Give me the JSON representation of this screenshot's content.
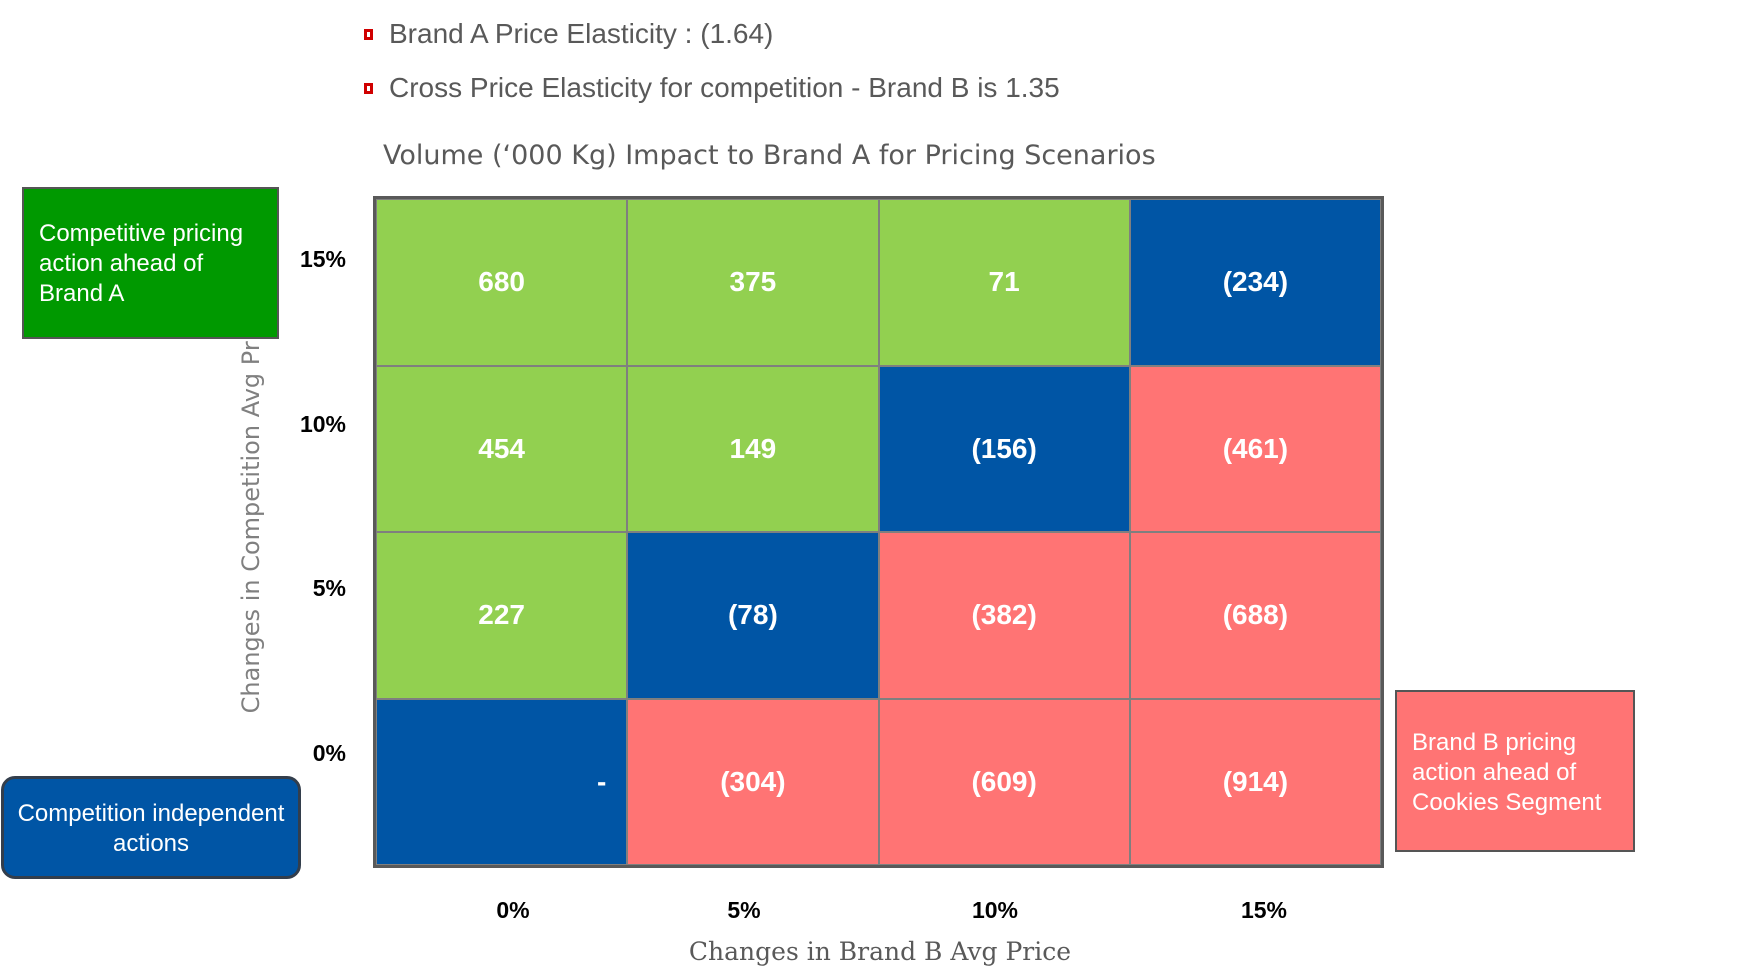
{
  "bullets": [
    "Brand A Price Elasticity : (1.64)",
    "Cross Price Elasticity for competition -  Brand B is 1.35"
  ],
  "chart_data": {
    "type": "heatmap",
    "title": "Volume (‘000 Kg) Impact to Brand A for Pricing Scenarios",
    "xlabel": "Changes in Brand B Avg Price",
    "ylabel": "Changes in Competition  Avg Price",
    "x_categories": [
      "0%",
      "5%",
      "10%",
      "15%"
    ],
    "y_categories": [
      "15%",
      "10%",
      "5%",
      "0%"
    ],
    "rows": [
      [
        680,
        375,
        71,
        -234
      ],
      [
        454,
        149,
        -156,
        -461
      ],
      [
        227,
        -78,
        -382,
        -688
      ],
      [
        0,
        -304,
        -609,
        -914
      ]
    ],
    "row_labels_text": [
      [
        "680",
        "375",
        "71",
        "(234)"
      ],
      [
        "454",
        "149",
        "(156)",
        "(461)"
      ],
      [
        "227",
        "(78)",
        "(382)",
        "(688)"
      ],
      [
        "-",
        "(304)",
        "(609)",
        "(914)"
      ]
    ],
    "colors": {
      "positive": "#92d050",
      "neutral_diagonal": "#0055a5",
      "negative": "#ff7474"
    }
  },
  "callouts": {
    "green": "Competitive pricing action ahead of Brand A",
    "blue": "Competition independent actions",
    "red": "Brand B pricing action ahead of Cookies Segment"
  }
}
